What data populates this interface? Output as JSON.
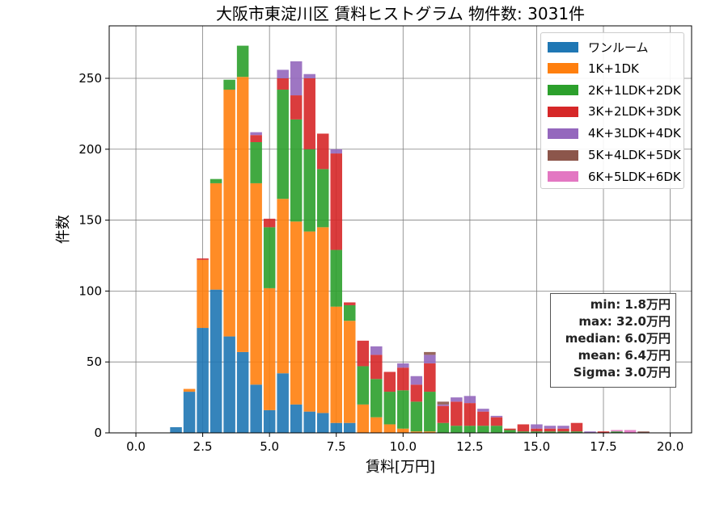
{
  "chart_data": {
    "type": "bar",
    "stacked": true,
    "title": "大阪市東淀川区 賃料ヒストグラム 物件数: 3031件",
    "xlabel": "賃料[万円]",
    "ylabel": "件数",
    "xlim": [
      -1.0,
      20.8
    ],
    "ylim": [
      0,
      287
    ],
    "xticks": [
      "0.0",
      "2.5",
      "5.0",
      "7.5",
      "10.0",
      "12.5",
      "15.0",
      "17.5",
      "20.0"
    ],
    "xtick_values": [
      0,
      2.5,
      5,
      7.5,
      10,
      12.5,
      15,
      17.5,
      20
    ],
    "yticks": [
      "0",
      "50",
      "100",
      "150",
      "200",
      "250"
    ],
    "ytick_values": [
      0,
      50,
      100,
      150,
      200,
      250
    ],
    "grid": true,
    "legend_position": "top-right",
    "bin_width": 0.5,
    "bin_centers": [
      1.5,
      2.0,
      2.5,
      3.0,
      3.5,
      4.0,
      4.5,
      5.0,
      5.5,
      6.0,
      6.5,
      7.0,
      7.5,
      8.0,
      8.5,
      9.0,
      9.5,
      10.0,
      10.5,
      11.0,
      11.5,
      12.0,
      12.5,
      13.0,
      13.5,
      14.0,
      14.5,
      15.0,
      15.5,
      16.0,
      16.5,
      17.0,
      17.5,
      18.0,
      18.5,
      19.0,
      19.5
    ],
    "series": [
      {
        "name": "ワンルーム",
        "color": "#1f77b4",
        "values": [
          4,
          29,
          74,
          101,
          68,
          57,
          34,
          16,
          42,
          20,
          15,
          14,
          7,
          7,
          0,
          0,
          0,
          0,
          0,
          0,
          0,
          0,
          0,
          0,
          0,
          0,
          0,
          0,
          0,
          0,
          0,
          0,
          0,
          0,
          0,
          0,
          0
        ]
      },
      {
        "name": "1K+1DK",
        "color": "#ff7f0e",
        "values": [
          0,
          2,
          48,
          75,
          174,
          194,
          142,
          86,
          123,
          129,
          127,
          131,
          82,
          72,
          20,
          11,
          6,
          3,
          1,
          1,
          0,
          0,
          0,
          0,
          0,
          0,
          0,
          0,
          0,
          0,
          0,
          0,
          0,
          0,
          0,
          0,
          0
        ]
      },
      {
        "name": "2K+1LDK+2DK",
        "color": "#2ca02c",
        "values": [
          0,
          0,
          0,
          3,
          7,
          22,
          29,
          43,
          77,
          72,
          58,
          41,
          40,
          11,
          27,
          27,
          23,
          27,
          21,
          28,
          7,
          5,
          5,
          5,
          5,
          2,
          1,
          1,
          1,
          1,
          1,
          0,
          0,
          1,
          0,
          0,
          0
        ]
      },
      {
        "name": "3K+2LDK+3DK",
        "color": "#d62728",
        "values": [
          0,
          0,
          1,
          0,
          0,
          0,
          5,
          6,
          8,
          17,
          50,
          25,
          68,
          2,
          18,
          17,
          14,
          16,
          12,
          20,
          12,
          17,
          16,
          10,
          6,
          1,
          5,
          2,
          2,
          2,
          6,
          0,
          1,
          0,
          0,
          0,
          0
        ]
      },
      {
        "name": "4K+3LDK+4DK",
        "color": "#9467bd",
        "values": [
          0,
          0,
          0,
          0,
          0,
          0,
          2,
          0,
          6,
          24,
          3,
          0,
          3,
          0,
          0,
          6,
          0,
          3,
          6,
          6,
          1,
          3,
          5,
          2,
          1,
          0,
          0,
          3,
          2,
          2,
          0,
          1,
          0,
          0,
          0,
          0,
          0
        ]
      },
      {
        "name": "5K+4LDK+5DK",
        "color": "#8c564b",
        "values": [
          0,
          0,
          0,
          0,
          0,
          0,
          0,
          0,
          0,
          0,
          0,
          0,
          0,
          0,
          0,
          0,
          0,
          0,
          0,
          2,
          2,
          0,
          0,
          0,
          0,
          0,
          0,
          0,
          0,
          0,
          0,
          0,
          0,
          0,
          0,
          1,
          0
        ]
      },
      {
        "name": "6K+5LDK+6DK",
        "color": "#e377c2",
        "values": [
          0,
          0,
          0,
          0,
          0,
          0,
          0,
          0,
          0,
          0,
          0,
          0,
          0,
          0,
          0,
          0,
          0,
          0,
          0,
          0,
          0,
          0,
          0,
          0,
          0,
          0,
          0,
          0,
          0,
          0,
          0,
          0,
          0,
          1,
          2,
          0,
          0
        ]
      }
    ],
    "stats": [
      "min: 1.8万円",
      "max: 32.0万円",
      "median: 6.0万円",
      "mean: 6.4万円",
      "Sigma: 3.0万円"
    ]
  }
}
